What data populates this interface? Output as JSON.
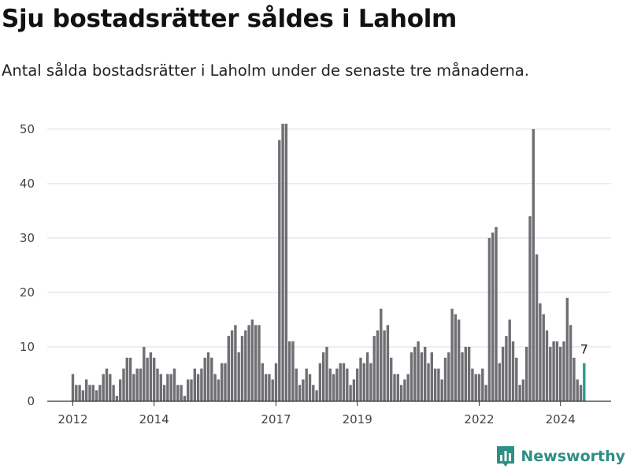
{
  "header": {
    "title": "Sju bostadsrätter såldes i Laholm",
    "subtitle": "Antal sålda bostadsrätter i Laholm under de senaste tre månaderna."
  },
  "brand": {
    "name": "Newsworthy",
    "icon": "bar-chart-logo-icon",
    "color": "#2e8f84"
  },
  "chart_data": {
    "type": "bar",
    "title": "Sju bostadsrätter såldes i Laholm",
    "subtitle": "Antal sålda bostadsrätter i Laholm under de senaste tre månaderna.",
    "ylim": [
      0,
      52
    ],
    "yticks": [
      0,
      10,
      20,
      30,
      40,
      50
    ],
    "xticks": [
      "2012",
      "2014",
      "2017",
      "2019",
      "2022",
      "2024"
    ],
    "grid": true,
    "bar_color": "#6f6e73",
    "highlight_color": "#2a9d8f",
    "highlight_label": "7",
    "values": [
      5,
      3,
      3,
      2,
      4,
      3,
      3,
      2,
      3,
      5,
      6,
      5,
      3,
      1,
      4,
      6,
      8,
      8,
      5,
      6,
      6,
      10,
      8,
      9,
      8,
      6,
      5,
      3,
      5,
      5,
      6,
      3,
      3,
      1,
      4,
      4,
      6,
      5,
      6,
      8,
      9,
      8,
      5,
      4,
      7,
      7,
      12,
      13,
      14,
      9,
      12,
      13,
      14,
      15,
      14,
      14,
      7,
      5,
      5,
      4,
      7,
      48,
      51,
      51,
      11,
      11,
      6,
      3,
      4,
      6,
      5,
      3,
      2,
      7,
      9,
      10,
      6,
      5,
      6,
      7,
      7,
      6,
      3,
      4,
      6,
      8,
      7,
      9,
      7,
      12,
      13,
      17,
      13,
      14,
      8,
      5,
      5,
      3,
      4,
      5,
      9,
      10,
      11,
      9,
      10,
      7,
      9,
      6,
      6,
      4,
      8,
      9,
      17,
      16,
      15,
      9,
      10,
      10,
      6,
      5,
      5,
      6,
      3,
      30,
      31,
      32,
      7,
      10,
      12,
      15,
      11,
      8,
      3,
      4,
      10,
      34,
      50,
      27,
      18,
      16,
      13,
      10,
      11,
      11,
      10,
      11,
      19,
      14,
      8,
      4,
      3,
      7
    ]
  }
}
